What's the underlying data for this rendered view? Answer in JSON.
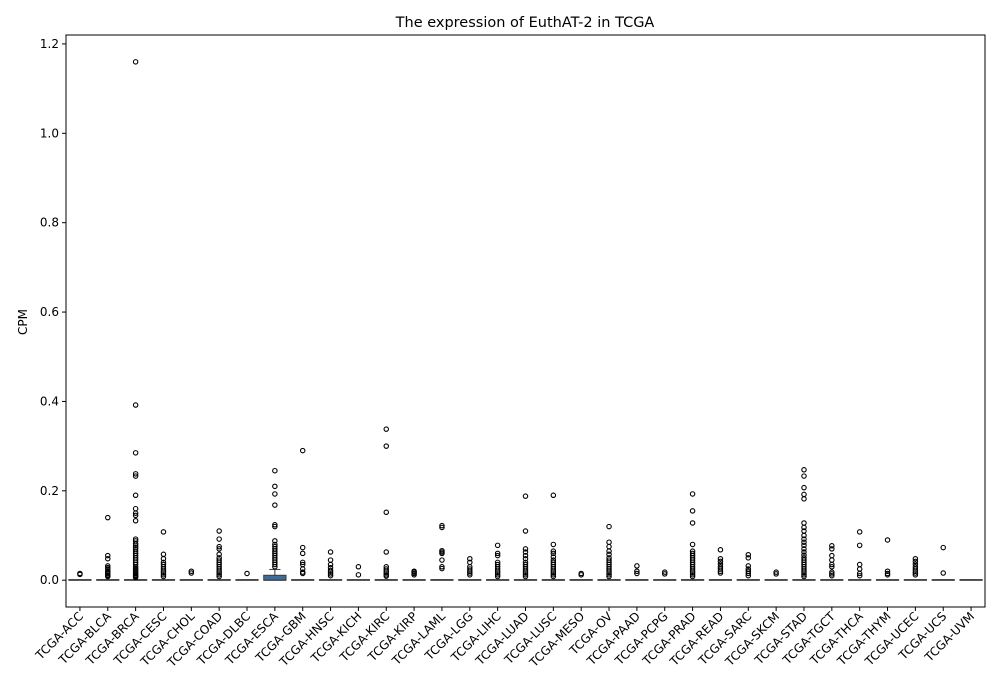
{
  "chart_data": {
    "type": "box",
    "title": "The expression of EuthAT-2 in TCGA",
    "xlabel": "",
    "ylabel": "CPM",
    "ylim": [
      -0.06,
      1.22
    ],
    "yticks": [
      0.0,
      0.2,
      0.4,
      0.6,
      0.8,
      1.0,
      1.2
    ],
    "ytick_labels": [
      "0.0",
      "0.2",
      "0.4",
      "0.6",
      "0.8",
      "1.0",
      "1.2"
    ],
    "grid": false,
    "box_color": "#3b6d9e",
    "categories": [
      "TCGA-ACC",
      "TCGA-BLCA",
      "TCGA-BRCA",
      "TCGA-CESC",
      "TCGA-CHOL",
      "TCGA-COAD",
      "TCGA-DLBC",
      "TCGA-ESCA",
      "TCGA-GBM",
      "TCGA-HNSC",
      "TCGA-KICH",
      "TCGA-KIRC",
      "TCGA-KIRP",
      "TCGA-LAML",
      "TCGA-LGG",
      "TCGA-LIHC",
      "TCGA-LUAD",
      "TCGA-LUSC",
      "TCGA-MESO",
      "TCGA-OV",
      "TCGA-PAAD",
      "TCGA-PCPG",
      "TCGA-PRAD",
      "TCGA-READ",
      "TCGA-SARC",
      "TCGA-SKCM",
      "TCGA-STAD",
      "TCGA-TGCT",
      "TCGA-THCA",
      "TCGA-THYM",
      "TCGA-UCEC",
      "TCGA-UCS",
      "TCGA-UVM"
    ],
    "boxes": [
      {
        "q1": 0,
        "median": 0,
        "q3": 0,
        "whisker_high": 0,
        "outliers": [
          0.015,
          0.013
        ]
      },
      {
        "q1": 0,
        "median": 0,
        "q3": 0,
        "whisker_high": 0,
        "outliers": [
          0.14,
          0.055,
          0.048,
          0.032,
          0.028,
          0.025,
          0.02,
          0.018,
          0.015,
          0.012,
          0.01,
          0.008
        ]
      },
      {
        "q1": 0,
        "median": 0,
        "q3": 0,
        "whisker_high": 0,
        "outliers": [
          1.16,
          0.392,
          0.285,
          0.238,
          0.233,
          0.19,
          0.16,
          0.15,
          0.145,
          0.133,
          0.092,
          0.088,
          0.082,
          0.078,
          0.074,
          0.07,
          0.065,
          0.06,
          0.055,
          0.05,
          0.045,
          0.04,
          0.035,
          0.03,
          0.027,
          0.024,
          0.021,
          0.018,
          0.015,
          0.012,
          0.01,
          0.008,
          0.006
        ]
      },
      {
        "q1": 0,
        "median": 0,
        "q3": 0,
        "whisker_high": 0,
        "outliers": [
          0.108,
          0.058,
          0.048,
          0.04,
          0.035,
          0.03,
          0.025,
          0.02,
          0.016,
          0.012,
          0.008
        ]
      },
      {
        "q1": 0,
        "median": 0,
        "q3": 0,
        "whisker_high": 0,
        "outliers": [
          0.02,
          0.016
        ]
      },
      {
        "q1": 0,
        "median": 0,
        "q3": 0,
        "whisker_high": 0,
        "outliers": [
          0.11,
          0.092,
          0.075,
          0.07,
          0.058,
          0.05,
          0.045,
          0.04,
          0.035,
          0.03,
          0.025,
          0.02,
          0.016,
          0.012,
          0.008
        ]
      },
      {
        "q1": 0,
        "median": 0,
        "q3": 0,
        "whisker_high": 0,
        "outliers": [
          0.015
        ]
      },
      {
        "q1": 0,
        "median": 0,
        "q3": 0.011,
        "whisker_high": 0.024,
        "outliers": [
          0.245,
          0.21,
          0.193,
          0.168,
          0.124,
          0.12,
          0.088,
          0.08,
          0.075,
          0.07,
          0.065,
          0.06,
          0.055,
          0.05,
          0.045,
          0.04,
          0.035,
          0.03
        ]
      },
      {
        "q1": 0,
        "median": 0,
        "q3": 0,
        "whisker_high": 0,
        "outliers": [
          0.29,
          0.073,
          0.06,
          0.04,
          0.035,
          0.025,
          0.018,
          0.015
        ]
      },
      {
        "q1": 0,
        "median": 0,
        "q3": 0,
        "whisker_high": 0,
        "outliers": [
          0.063,
          0.045,
          0.035,
          0.028,
          0.022,
          0.018,
          0.014,
          0.01
        ]
      },
      {
        "q1": 0,
        "median": 0,
        "q3": 0,
        "whisker_high": 0,
        "outliers": [
          0.03,
          0.012
        ]
      },
      {
        "q1": 0,
        "median": 0,
        "q3": 0,
        "whisker_high": 0,
        "outliers": [
          0.338,
          0.3,
          0.152,
          0.063,
          0.03,
          0.025,
          0.02,
          0.016,
          0.012,
          0.009
        ]
      },
      {
        "q1": 0,
        "median": 0,
        "q3": 0,
        "whisker_high": 0,
        "outliers": [
          0.02,
          0.018,
          0.015,
          0.012
        ]
      },
      {
        "q1": 0,
        "median": 0,
        "q3": 0,
        "whisker_high": 0,
        "outliers": [
          0.122,
          0.118,
          0.066,
          0.063,
          0.06,
          0.045,
          0.03,
          0.026
        ]
      },
      {
        "q1": 0,
        "median": 0,
        "q3": 0,
        "whisker_high": 0,
        "outliers": [
          0.048,
          0.04,
          0.03,
          0.025,
          0.02,
          0.016,
          0.012
        ]
      },
      {
        "q1": 0,
        "median": 0,
        "q3": 0,
        "whisker_high": 0,
        "outliers": [
          0.078,
          0.06,
          0.055,
          0.04,
          0.035,
          0.03,
          0.025,
          0.02,
          0.016,
          0.012,
          0.008
        ]
      },
      {
        "q1": 0,
        "median": 0,
        "q3": 0,
        "whisker_high": 0,
        "outliers": [
          0.188,
          0.11,
          0.07,
          0.063,
          0.055,
          0.048,
          0.04,
          0.035,
          0.03,
          0.025,
          0.02,
          0.016,
          0.012,
          0.008
        ]
      },
      {
        "q1": 0,
        "median": 0,
        "q3": 0,
        "whisker_high": 0,
        "outliers": [
          0.19,
          0.08,
          0.065,
          0.06,
          0.052,
          0.045,
          0.04,
          0.035,
          0.03,
          0.025,
          0.02,
          0.016,
          0.012,
          0.008
        ]
      },
      {
        "q1": 0,
        "median": 0,
        "q3": 0,
        "whisker_high": 0,
        "outliers": [
          0.015,
          0.012
        ]
      },
      {
        "q1": 0,
        "median": 0,
        "q3": 0,
        "whisker_high": 0,
        "outliers": [
          0.12,
          0.085,
          0.075,
          0.065,
          0.058,
          0.05,
          0.045,
          0.04,
          0.035,
          0.03,
          0.025,
          0.02,
          0.016,
          0.012,
          0.008
        ]
      },
      {
        "q1": 0,
        "median": 0,
        "q3": 0,
        "whisker_high": 0,
        "outliers": [
          0.032,
          0.02,
          0.015
        ]
      },
      {
        "q1": 0,
        "median": 0,
        "q3": 0,
        "whisker_high": 0,
        "outliers": [
          0.018,
          0.014
        ]
      },
      {
        "q1": 0,
        "median": 0,
        "q3": 0,
        "whisker_high": 0,
        "outliers": [
          0.193,
          0.155,
          0.128,
          0.08,
          0.065,
          0.06,
          0.055,
          0.05,
          0.045,
          0.04,
          0.035,
          0.03,
          0.025,
          0.02,
          0.016,
          0.012,
          0.008
        ]
      },
      {
        "q1": 0,
        "median": 0,
        "q3": 0,
        "whisker_high": 0,
        "outliers": [
          0.068,
          0.048,
          0.042,
          0.036,
          0.03,
          0.025,
          0.02,
          0.016
        ]
      },
      {
        "q1": 0,
        "median": 0,
        "q3": 0,
        "whisker_high": 0,
        "outliers": [
          0.057,
          0.05,
          0.032,
          0.025,
          0.02,
          0.015,
          0.01
        ]
      },
      {
        "q1": 0,
        "median": 0,
        "q3": 0,
        "whisker_high": 0,
        "outliers": [
          0.018,
          0.014
        ]
      },
      {
        "q1": 0,
        "median": 0,
        "q3": 0,
        "whisker_high": 0,
        "outliers": [
          0.247,
          0.233,
          0.207,
          0.192,
          0.182,
          0.128,
          0.118,
          0.11,
          0.1,
          0.092,
          0.085,
          0.078,
          0.07,
          0.063,
          0.056,
          0.05,
          0.045,
          0.04,
          0.035,
          0.03,
          0.025,
          0.02,
          0.016,
          0.012,
          0.008
        ]
      },
      {
        "q1": 0,
        "median": 0,
        "q3": 0,
        "whisker_high": 0,
        "outliers": [
          0.077,
          0.07,
          0.055,
          0.045,
          0.035,
          0.03,
          0.018,
          0.014,
          0.01
        ]
      },
      {
        "q1": 0,
        "median": 0,
        "q3": 0,
        "whisker_high": 0,
        "outliers": [
          0.108,
          0.078,
          0.035,
          0.025,
          0.015,
          0.01
        ]
      },
      {
        "q1": 0,
        "median": 0,
        "q3": 0,
        "whisker_high": 0,
        "outliers": [
          0.09,
          0.02,
          0.015,
          0.012
        ]
      },
      {
        "q1": 0,
        "median": 0,
        "q3": 0,
        "whisker_high": 0,
        "outliers": [
          0.048,
          0.042,
          0.036,
          0.03,
          0.025,
          0.02,
          0.016,
          0.012
        ]
      },
      {
        "q1": 0,
        "median": 0,
        "q3": 0,
        "whisker_high": 0,
        "outliers": [
          0.073,
          0.016
        ]
      },
      {
        "q1": 0,
        "median": 0,
        "q3": 0,
        "whisker_high": 0,
        "outliers": []
      }
    ]
  }
}
